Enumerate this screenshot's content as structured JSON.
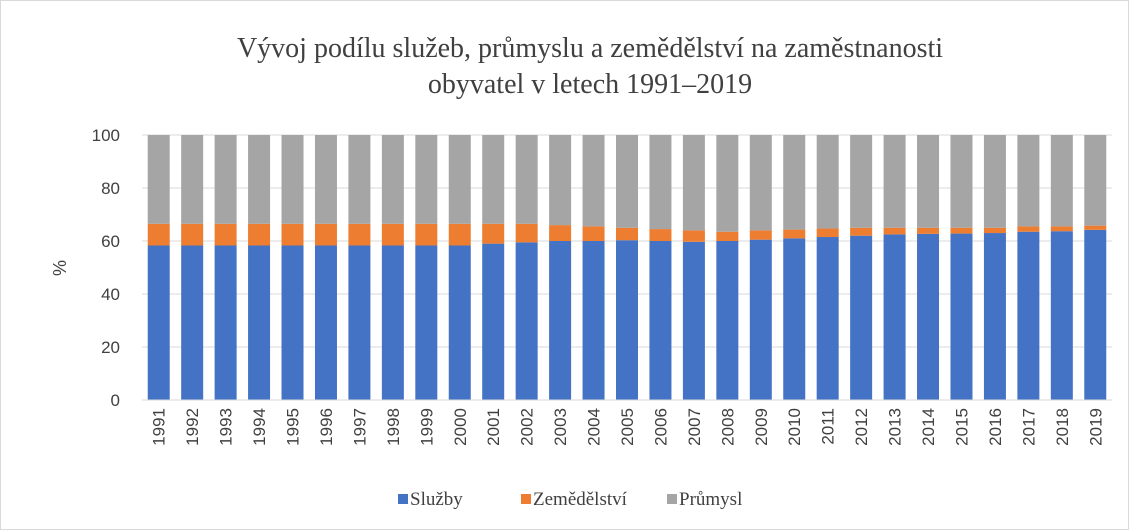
{
  "chart_data": {
    "type": "stacked_bar",
    "title": [
      "Vývoj podílu služeb, průmyslu a zemědělství na zaměstnanosti",
      "obyvatel v letech 1991–2019"
    ],
    "y_label": "%",
    "categories": [
      "1991",
      "1992",
      "1993",
      "1994",
      "1995",
      "1996",
      "1997",
      "1998",
      "1999",
      "2000",
      "2001",
      "2002",
      "2003",
      "2004",
      "2005",
      "2006",
      "2007",
      "2008",
      "2009",
      "2010",
      "2011",
      "2012",
      "2013",
      "2014",
      "2015",
      "2016",
      "2017",
      "2018",
      "2019"
    ],
    "series": [
      {
        "name": "Služby",
        "color": "#4472c4",
        "values": [
          58.3,
          58.3,
          58.3,
          58.3,
          58.3,
          58.3,
          58.3,
          58.3,
          58.3,
          58.3,
          59,
          59.5,
          60,
          60,
          60.3,
          60,
          59.7,
          60,
          60.5,
          61,
          61.5,
          62,
          62.5,
          62.7,
          62.8,
          63,
          63.5,
          63.7,
          64.2
        ]
      },
      {
        "name": "Zemědělství",
        "color": "#ed7d31",
        "values": [
          8.2,
          8.2,
          8.2,
          8.2,
          8.2,
          8.2,
          8.2,
          8.2,
          8.2,
          8.2,
          7.5,
          7,
          6,
          5.5,
          4.7,
          4.5,
          4.3,
          3.5,
          3.5,
          3.3,
          3.2,
          3,
          2.5,
          2.3,
          2.2,
          2,
          2,
          1.8,
          1.6
        ]
      },
      {
        "name": "Průmysl",
        "color": "#a5a5a5",
        "values": [
          33.5,
          33.5,
          33.5,
          33.5,
          33.5,
          33.5,
          33.5,
          33.5,
          33.5,
          33.5,
          33.5,
          33.5,
          34,
          34.5,
          35,
          35.5,
          36,
          36.5,
          36,
          35.7,
          35.3,
          35,
          35,
          35,
          35,
          35,
          34.5,
          34.5,
          34.2
        ]
      }
    ],
    "ylim": [
      0,
      100
    ],
    "yticks": [
      0,
      20,
      40,
      60,
      80,
      100
    ],
    "legend": "bottom"
  }
}
